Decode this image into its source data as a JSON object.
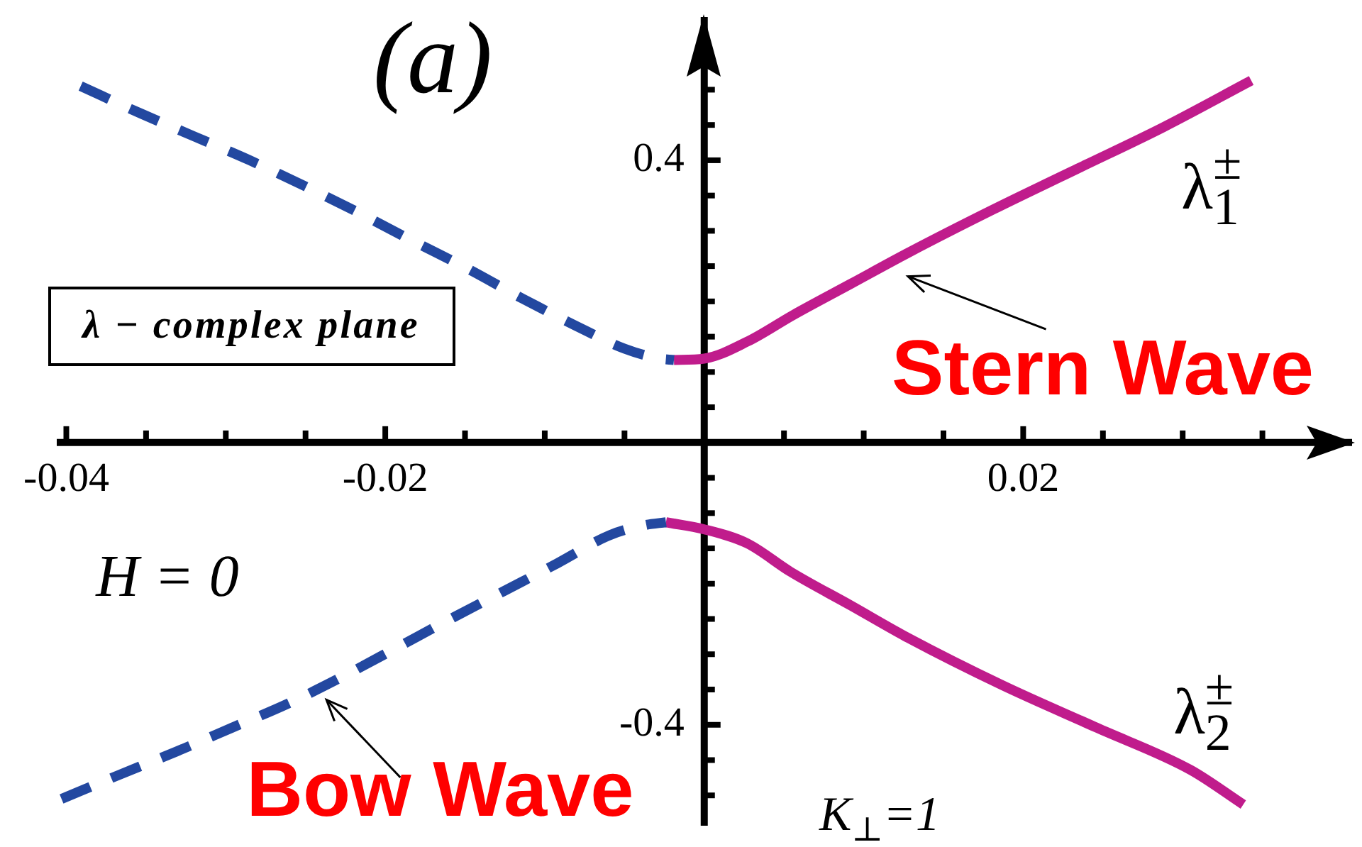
{
  "chart_data": {
    "type": "line",
    "title": "(a)",
    "xlim": [
      -0.0406,
      0.0408
    ],
    "ylim": [
      -0.543,
      0.607
    ],
    "xticks": [
      -0.04,
      {
        "value": -0.035,
        "label": null
      },
      {
        "value": -0.03,
        "label": null
      },
      {
        "value": -0.025,
        "label": null
      },
      -0.02,
      {
        "value": -0.015,
        "label": null
      },
      {
        "value": -0.01,
        "label": null
      },
      {
        "value": -0.005,
        "label": null
      },
      {
        "value": 0.005,
        "label": null
      },
      {
        "value": 0.01,
        "label": null
      },
      {
        "value": 0.015,
        "label": null
      },
      0.02,
      {
        "value": 0.025,
        "label": null
      },
      {
        "value": 0.03,
        "label": null
      },
      {
        "value": 0.035,
        "label": null
      }
    ],
    "yticks": [
      {
        "value": -0.5,
        "label": null
      },
      {
        "value": -0.45,
        "label": null
      },
      -0.4,
      {
        "value": -0.35,
        "label": null
      },
      {
        "value": -0.3,
        "label": null
      },
      {
        "value": -0.25,
        "label": null
      },
      {
        "value": -0.2,
        "label": null
      },
      {
        "value": -0.15,
        "label": null
      },
      {
        "value": -0.1,
        "label": null
      },
      {
        "value": -0.05,
        "label": null
      },
      {
        "value": 0.05,
        "label": null
      },
      {
        "value": 0.1,
        "label": null
      },
      {
        "value": 0.15,
        "label": null
      },
      {
        "value": 0.2,
        "label": null
      },
      {
        "value": 0.25,
        "label": null
      },
      {
        "value": 0.3,
        "label": null
      },
      {
        "value": 0.35,
        "label": null
      },
      0.4,
      {
        "value": 0.45,
        "label": null
      },
      {
        "value": 0.5,
        "label": null
      }
    ],
    "series": [
      {
        "color": "#2348a0",
        "line_style": "dashed",
        "x": [
          -0.0391,
          -0.0353,
          -0.032,
          -0.0285,
          -0.0251,
          -0.0217,
          -0.0183,
          -0.0148,
          -0.0114,
          -0.0081,
          -0.005,
          -0.0028,
          -0.0019
        ],
        "values": [
          0.505,
          0.466,
          0.434,
          0.4,
          0.364,
          0.326,
          0.286,
          0.246,
          0.204,
          0.166,
          0.133,
          0.119,
          0.117
        ]
      },
      {
        "name": "λ$_{1}$$^{±}$",
        "color": "#c01c8c",
        "line_style": "solid",
        "x": [
          -0.0019,
          0,
          0.0027,
          0.0056,
          0.0092,
          0.0128,
          0.0181,
          0.0234,
          0.0288,
          0.0343
        ],
        "values": [
          0.117,
          0.119,
          0.143,
          0.181,
          0.225,
          0.269,
          0.33,
          0.388,
          0.447,
          0.513
        ]
      },
      {
        "color": "#2348a0",
        "line_style": "dashed",
        "x": [
          -0.0403,
          -0.0368,
          -0.0331,
          -0.0296,
          -0.0261,
          -0.0227,
          -0.0193,
          -0.016,
          -0.0126,
          -0.0092,
          -0.0059,
          -0.0037,
          -0.0024
        ],
        "values": [
          -0.505,
          -0.472,
          -0.438,
          -0.404,
          -0.37,
          -0.332,
          -0.291,
          -0.251,
          -0.211,
          -0.171,
          -0.131,
          -0.117,
          -0.113
        ]
      },
      {
        "name": "λ$_{2}$$^{±}$",
        "color": "#c01c8c",
        "line_style": "solid",
        "x": [
          -0.0024,
          0,
          0.0027,
          0.0054,
          0.0092,
          0.0128,
          0.0187,
          0.0246,
          0.0305,
          0.0338
        ],
        "values": [
          -0.113,
          -0.123,
          -0.143,
          -0.183,
          -0.231,
          -0.277,
          -0.344,
          -0.404,
          -0.464,
          -0.513
        ]
      }
    ],
    "annotations": [
      "λ − complex plane",
      "H = 0",
      "K$_{⊥}$=1",
      {
        "text": "Stern Wave",
        "x": 0.0112,
        "y": 0.249
      },
      {
        "text": "Bow Wave",
        "x": -0.0243,
        "y": -0.35
      }
    ]
  }
}
